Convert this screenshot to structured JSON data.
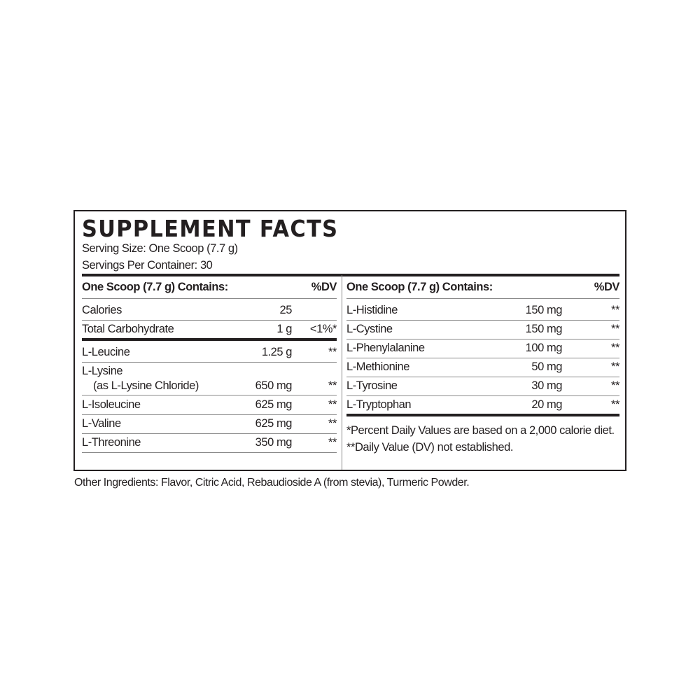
{
  "title": "SUPPLEMENT FACTS",
  "serving_size": "Serving Size: One Scoop (7.7 g)",
  "servings_per_container": "Servings Per Container: 30",
  "left": {
    "header": {
      "label": "One Scoop (7.7 g) Contains:",
      "dv": "%DV"
    },
    "rows": [
      {
        "name": "Calories",
        "amount": "25",
        "dv": ""
      },
      {
        "name": "Total Carbohydrate",
        "amount": "1 g",
        "dv": "<1%*"
      },
      {
        "name": "L-Leucine",
        "amount": "1.25 g",
        "dv": "**"
      },
      {
        "name": "L-Lysine",
        "sub": "(as L-Lysine Chloride)",
        "amount": "650 mg",
        "dv": "**"
      },
      {
        "name": "L-Isoleucine",
        "amount": "625 mg",
        "dv": "**"
      },
      {
        "name": "L-Valine",
        "amount": "625 mg",
        "dv": "**"
      },
      {
        "name": "L-Threonine",
        "amount": "350 mg",
        "dv": "**"
      }
    ]
  },
  "right": {
    "header": {
      "label": "One Scoop (7.7 g) Contains:",
      "dv": "%DV"
    },
    "rows": [
      {
        "name": "L-Histidine",
        "amount": "150 mg",
        "dv": "**"
      },
      {
        "name": "L-Cystine",
        "amount": "150 mg",
        "dv": "**"
      },
      {
        "name": "L-Phenylalanine",
        "amount": "100 mg",
        "dv": "**"
      },
      {
        "name": "L-Methionine",
        "amount": "50 mg",
        "dv": "**"
      },
      {
        "name": "L-Tyrosine",
        "amount": "30 mg",
        "dv": "**"
      },
      {
        "name": "L-Tryptophan",
        "amount": "20 mg",
        "dv": "**"
      }
    ],
    "footnotes": [
      "*Percent Daily Values are based on a 2,000 calorie diet.",
      "**Daily Value (DV) not established."
    ]
  },
  "other_ingredients": "Other Ingredients: Flavor, Citric Acid, Rebaudioside A (from stevia), Turmeric Powder."
}
